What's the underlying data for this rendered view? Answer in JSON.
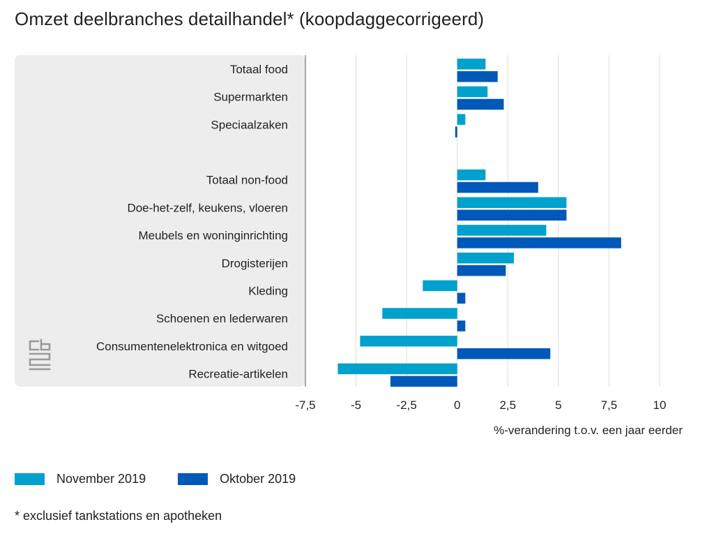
{
  "title": "Omzet deelbranches detailhandel* (koopdaggecorrigeerd)",
  "footnote": "* exclusief tankstations en apotheken",
  "colors": {
    "november": "#00A1CD",
    "oktober": "#0058B8",
    "panel": "#EDEDED",
    "grid": "#DDDDDD",
    "logo": "#9A9A9A"
  },
  "logo_icon": "cbs-logo-icon",
  "chart_data": {
    "type": "bar",
    "orientation": "horizontal",
    "title": "Omzet deelbranches detailhandel* (koopdaggecorrigeerd)",
    "xlabel": "%-verandering t.o.v. een jaar eerder",
    "ylabel": "",
    "xlim": [
      -7.5,
      10
    ],
    "grid": true,
    "legend_position": "bottom-left",
    "x_ticks": [
      -7.5,
      -5,
      -2.5,
      0,
      2.5,
      5,
      7.5,
      10
    ],
    "x_tick_labels": [
      "-7,5",
      "-5",
      "-2,5",
      "0",
      "2,5",
      "5",
      "7,5",
      "10"
    ],
    "categories": [
      "Totaal food",
      "Supermarkten",
      "Speciaalzaken",
      "",
      "Totaal non-food",
      "Doe-het-zelf, keukens, vloeren",
      "Meubels en woninginrichting",
      "Drogisterijen",
      "Kleding",
      "Schoenen en lederwaren",
      "Consumentenelektronica en witgoed",
      "Recreatie-artikelen"
    ],
    "series": [
      {
        "name": "November 2019",
        "color": "#00A1CD",
        "values": [
          1.4,
          1.5,
          0.4,
          null,
          1.4,
          5.4,
          4.4,
          2.8,
          -1.7,
          -3.7,
          -4.8,
          -5.9
        ]
      },
      {
        "name": "Oktober 2019",
        "color": "#0058B8",
        "values": [
          2.0,
          2.3,
          -0.1,
          null,
          4.0,
          5.4,
          8.1,
          2.4,
          0.4,
          0.4,
          4.6,
          -3.3
        ]
      }
    ]
  }
}
